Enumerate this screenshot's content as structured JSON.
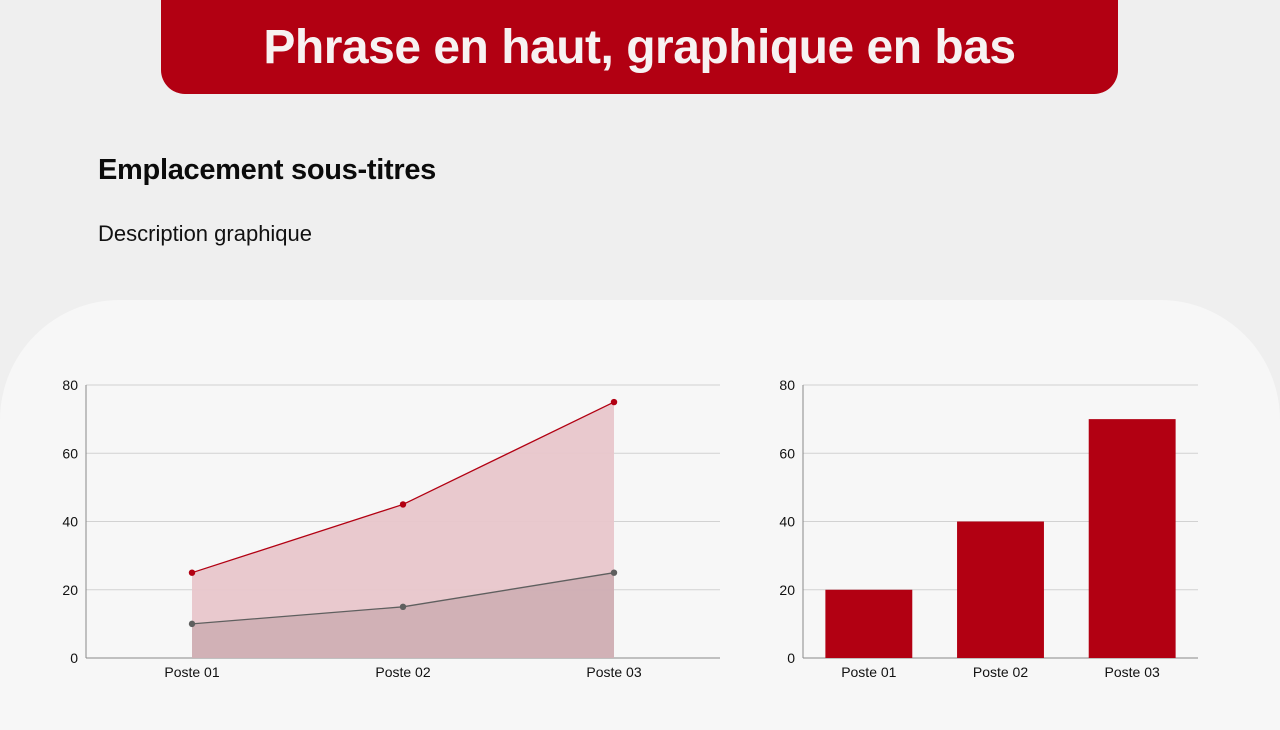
{
  "header": {
    "title": "Phrase en haut, graphique en bas"
  },
  "content": {
    "subtitle": "Emplacement sous-titres",
    "description": "Description graphique"
  },
  "colors": {
    "accent": "#b20012",
    "secondary": "#5f5f5f",
    "area_fill": "#e8c6cb",
    "area_fill_dark": "#c8a8ad"
  },
  "chart_data": [
    {
      "type": "area",
      "categories": [
        "Poste 01",
        "Poste 02",
        "Poste 03"
      ],
      "series": [
        {
          "values": [
            25,
            45,
            75
          ],
          "color": "#b20012"
        },
        {
          "values": [
            10,
            15,
            25
          ],
          "color": "#5f5f5f"
        }
      ],
      "ylim": [
        0,
        80
      ],
      "yticks": [
        "0",
        "20",
        "40",
        "60",
        "80"
      ],
      "grid": true
    },
    {
      "type": "bar",
      "categories": [
        "Poste 01",
        "Poste 02",
        "Poste 03"
      ],
      "values": [
        20,
        40,
        70
      ],
      "color": "#b20012",
      "ylim": [
        0,
        80
      ],
      "yticks": [
        "0",
        "20",
        "40",
        "60",
        "80"
      ],
      "grid": true
    }
  ]
}
